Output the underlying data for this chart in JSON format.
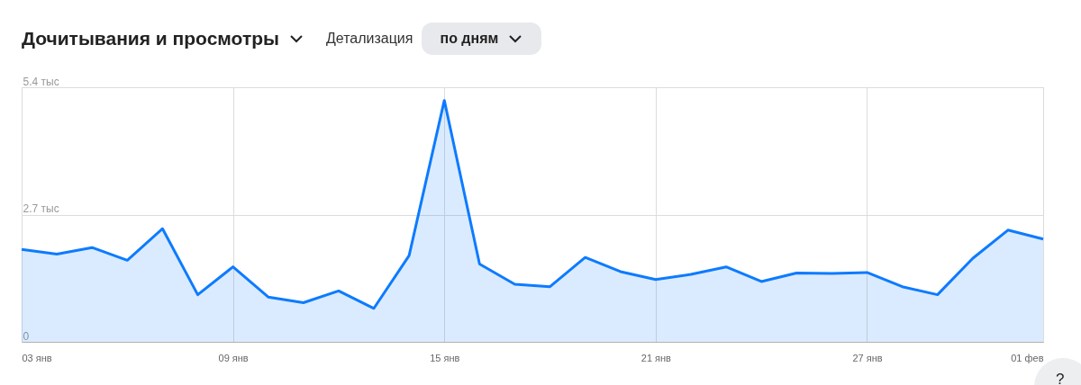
{
  "chart_data": {
    "type": "area",
    "title": "Дочитывания и просмотры",
    "annotations": [
      "Детализация",
      "по дням",
      "?"
    ],
    "x": [
      "--01-03",
      "--01-04",
      "--01-05",
      "--01-06",
      "--01-07",
      "--01-08",
      "--01-09",
      "--01-10",
      "--01-11",
      "--01-12",
      "--01-13",
      "--01-14",
      "--01-15",
      "--01-16",
      "--01-17",
      "--01-18",
      "--01-19",
      "--01-20",
      "--01-21",
      "--01-22",
      "--01-23",
      "--01-24",
      "--01-25",
      "--01-26",
      "--01-27",
      "--01-28",
      "--01-29",
      "--01-30",
      "--01-31",
      "--02-01"
    ],
    "series": [
      {
        "color": "#0d7bff",
        "values": [
          1.96,
          1.86,
          2.0,
          1.73,
          2.4,
          1.0,
          1.59,
          0.95,
          0.83,
          1.08,
          0.71,
          1.83,
          5.12,
          1.65,
          1.22,
          1.17,
          1.79,
          1.49,
          1.32,
          1.43,
          1.59,
          1.28,
          1.46,
          1.45,
          1.47,
          1.17,
          1.0,
          1.77,
          2.37,
          2.18
        ]
      }
    ],
    "xlim": [
      "--01-03",
      "--02-01"
    ],
    "xticks": [
      {
        "value": "--01-03",
        "label": "03 янв"
      },
      {
        "value": "--01-09",
        "label": "09 янв"
      },
      {
        "value": "--01-15",
        "label": "15 янв"
      },
      {
        "value": "--01-21",
        "label": "21 янв"
      },
      {
        "value": "--01-27",
        "label": "27 янв"
      },
      {
        "value": "--02-01",
        "label": "01 фев"
      }
    ],
    "ylim": [
      0,
      5.4
    ],
    "yticks": [
      0,
      {
        "value": 2.7,
        "label": "2.7 тыс"
      },
      {
        "value": 5.4,
        "label": "5.4 тыс"
      }
    ],
    "grid": true
  }
}
